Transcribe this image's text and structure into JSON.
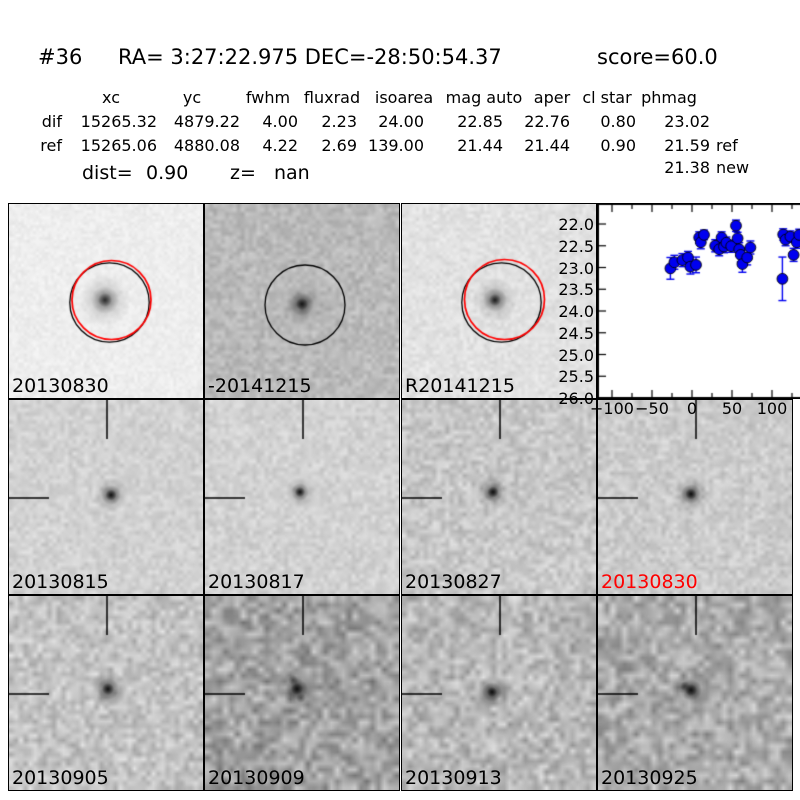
{
  "header": {
    "id_label": "#36",
    "coords_label": "RA= 3:27:22.975 DEC=-28:50:54.37",
    "score_label": "score=60.0"
  },
  "table": {
    "columns": [
      "xc",
      "yc",
      "fwhm",
      "fluxrad",
      "isoarea",
      "mag auto",
      "aper",
      "cl star",
      "phmag"
    ],
    "rows": [
      {
        "name": "dif",
        "values": [
          "15265.32",
          "4879.22",
          "4.00",
          "2.23",
          "24.00",
          "22.85",
          "22.76",
          "0.80",
          "23.02"
        ],
        "suffix": ""
      },
      {
        "name": "ref",
        "values": [
          "15265.06",
          "4880.08",
          "4.22",
          "2.69",
          "139.00",
          "21.44",
          "21.44",
          "0.90",
          "21.59"
        ],
        "suffix": "ref"
      }
    ],
    "extra_phmag": {
      "value": "21.38",
      "suffix": "new"
    },
    "dist_label": "dist=",
    "dist_value": "0.90",
    "z_label": "z=",
    "z_value": "nan"
  },
  "panels": [
    {
      "label": "20130830",
      "label_color": "#000000"
    },
    {
      "label": "-20141215",
      "label_color": "#000000"
    },
    {
      "label": "R20141215",
      "label_color": "#000000"
    },
    {
      "label": "20130815",
      "label_color": "#000000"
    },
    {
      "label": "20130817",
      "label_color": "#000000"
    },
    {
      "label": "20130827",
      "label_color": "#000000"
    },
    {
      "label": "20130830",
      "label_color": "#ff0000"
    },
    {
      "label": "20130905",
      "label_color": "#000000"
    },
    {
      "label": "20130909",
      "label_color": "#000000"
    },
    {
      "label": "20130913",
      "label_color": "#000000"
    },
    {
      "label": "20130925",
      "label_color": "#000000"
    }
  ],
  "overlay_colors": {
    "aperture_black": "#000000",
    "aperture_red": "#ff0000",
    "marker_blue": "#0000f0"
  },
  "chart_data": {
    "type": "scatter",
    "title": "",
    "xlabel": "",
    "ylabel": "",
    "xlim": [
      -118.75,
      135
    ],
    "ylim": [
      26.0,
      21.517
    ],
    "y_inverted": true,
    "grid": false,
    "xticks": [
      -100,
      -50,
      0,
      50,
      100
    ],
    "xtick_labels": [
      "−100",
      "−50",
      "0",
      "50",
      "100"
    ],
    "xticks_minor": [
      -75,
      -25,
      25,
      75,
      125
    ],
    "yticks": [
      22.0,
      22.5,
      23.0,
      23.5,
      24.0,
      24.5,
      25.0,
      25.5,
      26.0
    ],
    "ytick_labels": [
      "22.0",
      "22.5",
      "23.0",
      "23.5",
      "24.0",
      "24.5",
      "25.0",
      "25.5",
      "26.0"
    ],
    "points_format": "x_epoch_days, mag, mag_err",
    "points": [
      [
        -27,
        23.02,
        0.25
      ],
      [
        -22,
        22.88,
        0.16
      ],
      [
        -12,
        22.83,
        0.15
      ],
      [
        -5,
        22.77,
        0.14
      ],
      [
        -2,
        22.98,
        0.17
      ],
      [
        5,
        22.94,
        0.18
      ],
      [
        9,
        22.31,
        0.13
      ],
      [
        11,
        22.42,
        0.15
      ],
      [
        15,
        22.25,
        0.11
      ],
      [
        29,
        22.5,
        0.14
      ],
      [
        34,
        22.58,
        0.15
      ],
      [
        37,
        22.31,
        0.13
      ],
      [
        40,
        22.52,
        0.14
      ],
      [
        43,
        22.43,
        0.13
      ],
      [
        49,
        22.51,
        0.14
      ],
      [
        55,
        22.04,
        0.13
      ],
      [
        57,
        22.33,
        0.14
      ],
      [
        59,
        22.58,
        0.15
      ],
      [
        61,
        22.71,
        0.16
      ],
      [
        63,
        22.92,
        0.19
      ],
      [
        69,
        22.77,
        0.17
      ],
      [
        73,
        22.54,
        0.15
      ],
      [
        113,
        23.26,
        0.5
      ],
      [
        114,
        22.24,
        0.13
      ],
      [
        117,
        22.36,
        0.14
      ],
      [
        123,
        22.29,
        0.13
      ],
      [
        127,
        22.71,
        0.15
      ],
      [
        131,
        22.42,
        0.14
      ],
      [
        134,
        22.25,
        0.13
      ]
    ]
  }
}
